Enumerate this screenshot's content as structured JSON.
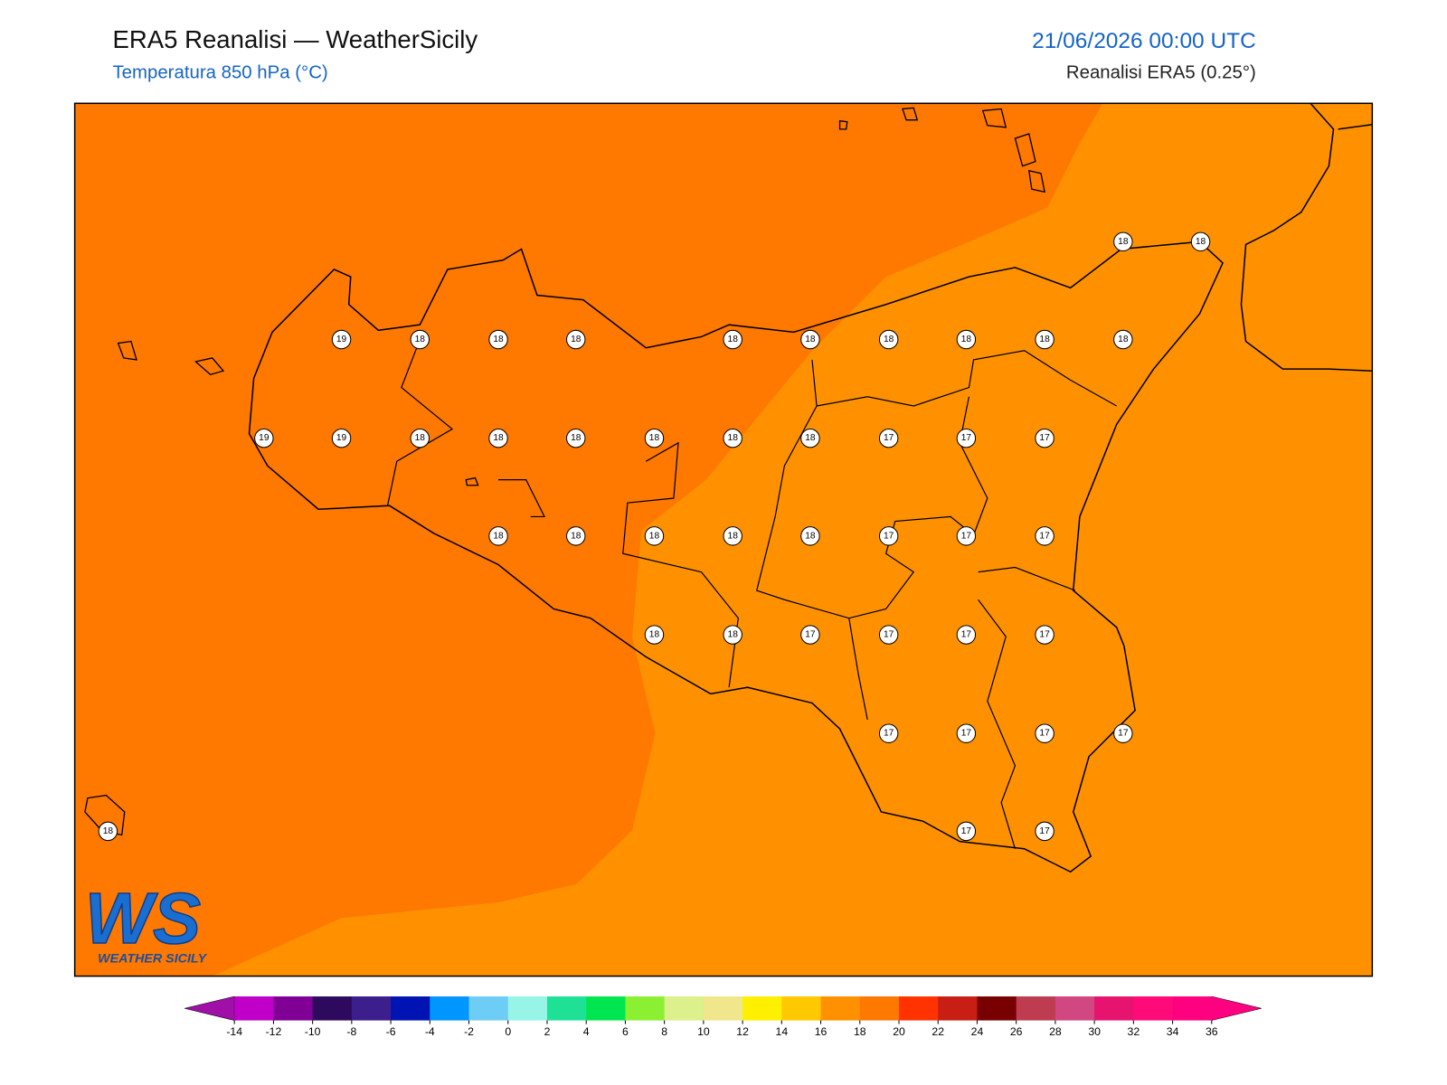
{
  "header": {
    "title": "ERA5 Reanalisi — WeatherSicily",
    "subtitle": "Temperatura 850 hPa (°C)",
    "date": "21/06/2026 00:00 UTC",
    "source": "Reanalisi ERA5 (0.25°)"
  },
  "points": [
    18,
    18,
    19,
    18,
    18,
    18,
    18,
    18,
    18,
    18,
    18,
    18,
    19,
    19,
    18,
    18,
    18,
    18,
    18,
    18,
    17,
    17,
    17,
    18,
    18,
    18,
    18,
    18,
    17,
    17,
    17,
    18,
    18,
    17,
    17,
    17,
    17,
    17,
    17,
    17,
    17,
    18,
    17,
    17
  ],
  "colorbar": {
    "ticks": [
      -14,
      -12,
      -10,
      -8,
      -6,
      -4,
      -2,
      0,
      2,
      4,
      6,
      8,
      10,
      12,
      14,
      16,
      18,
      20,
      22,
      24,
      26,
      28,
      30,
      32,
      34,
      36
    ],
    "under_color": "#a010a8",
    "over_color": "#ff0080",
    "colors": [
      "#c000c8",
      "#800096",
      "#2e0a5e",
      "#3c1e8c",
      "#0014b4",
      "#0096ff",
      "#6ecdf5",
      "#96f5e6",
      "#1ee196",
      "#00e650",
      "#8cf032",
      "#dcf08c",
      "#f0e68c",
      "#fff000",
      "#ffc800",
      "#ff9100",
      "#ff7800",
      "#ff3200",
      "#c81e14",
      "#780000",
      "#be3c50",
      "#d24682",
      "#e6146e",
      "#ff0a78",
      "#ff0080"
    ]
  },
  "logo": {
    "mark": "WS",
    "name": "WEATHER SICILY"
  }
}
